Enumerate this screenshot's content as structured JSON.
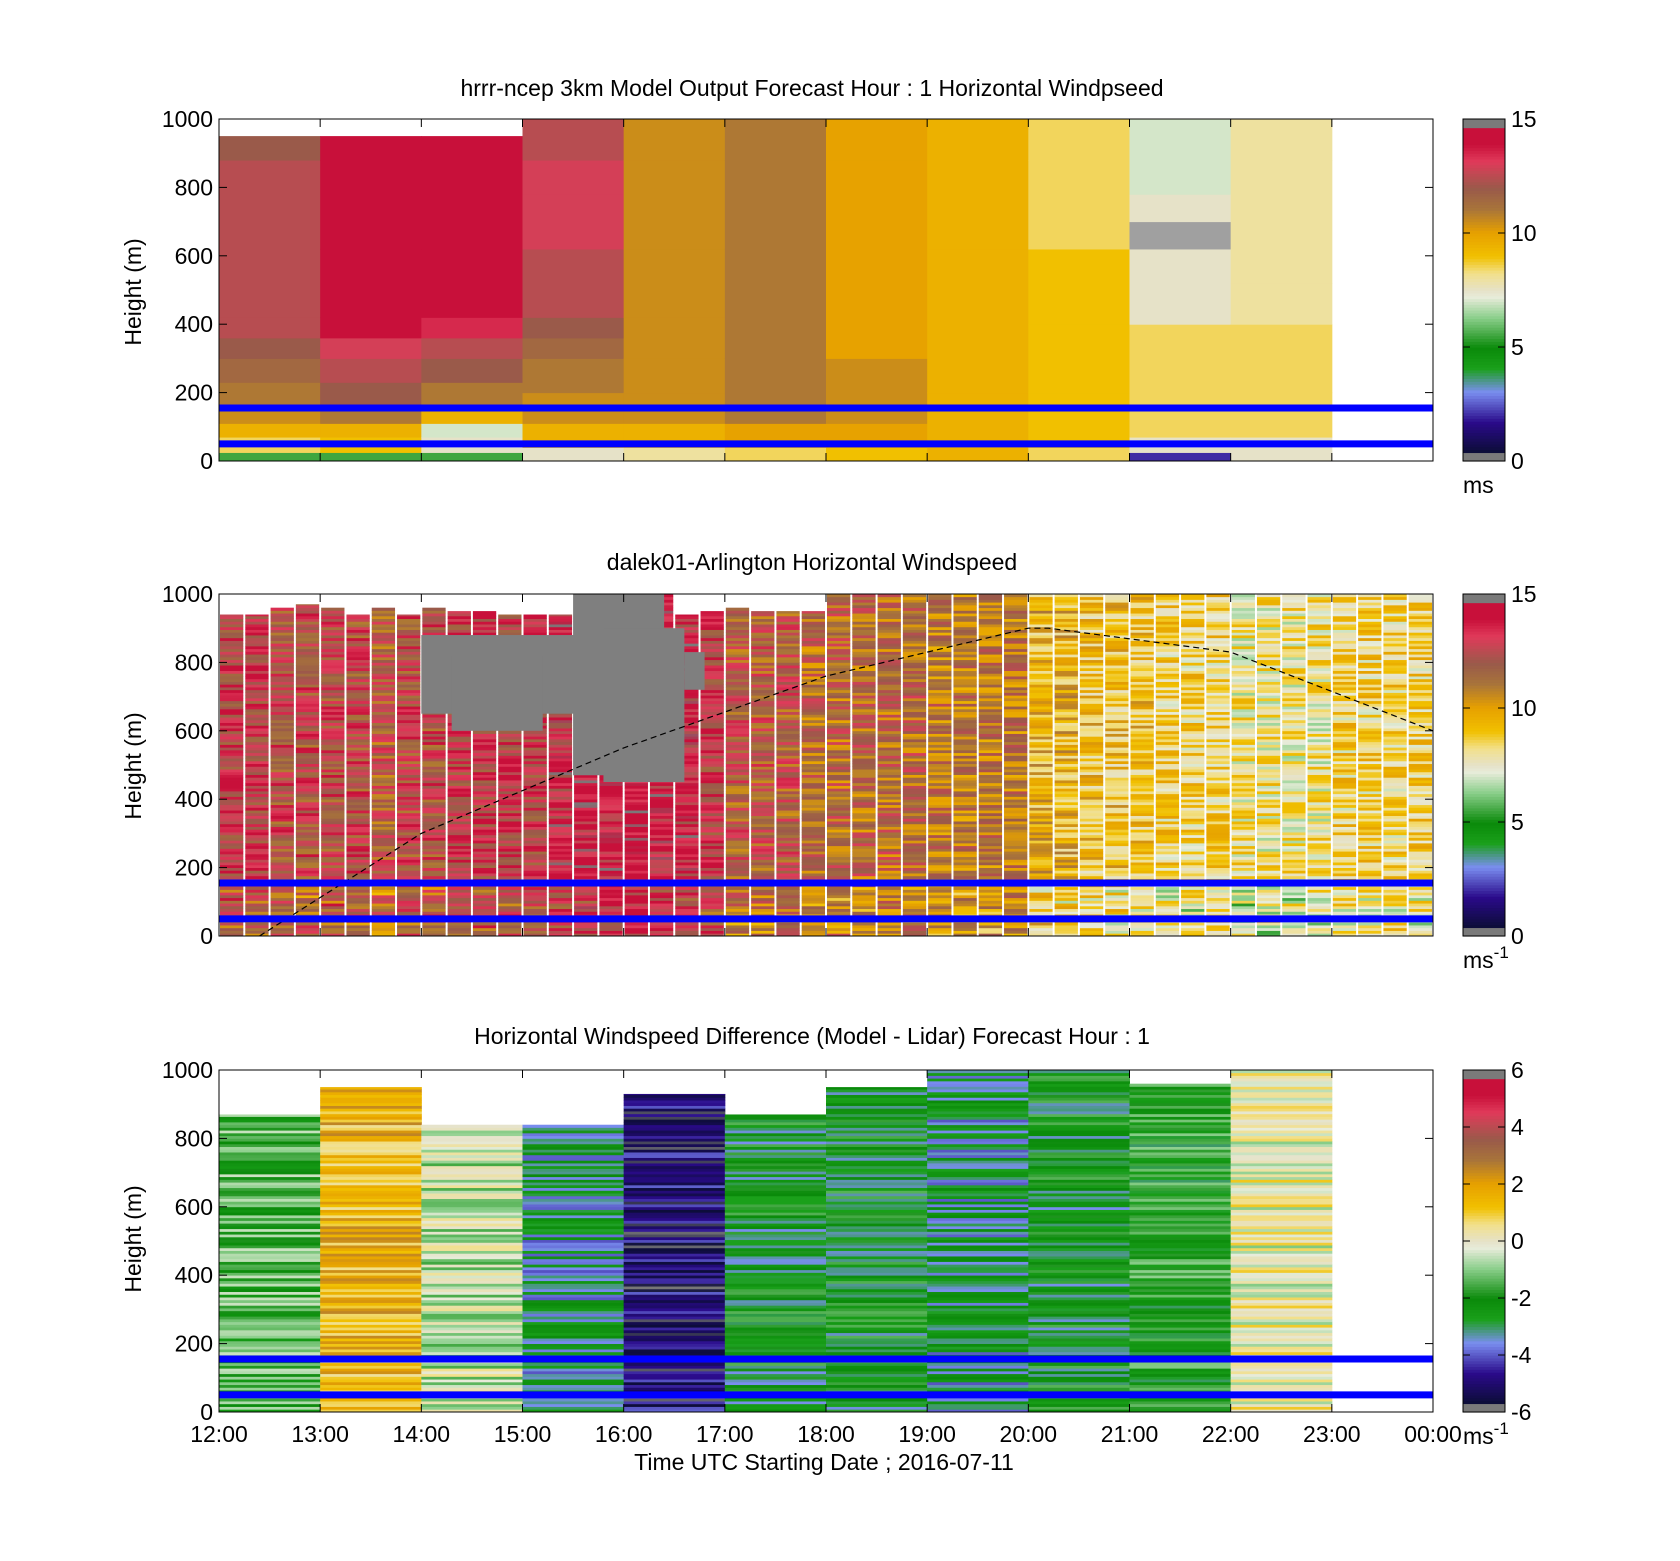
{
  "figure": {
    "x_tick_labels": [
      "12:00",
      "13:00",
      "14:00",
      "15:00",
      "16:00",
      "17:00",
      "18:00",
      "19:00",
      "20:00",
      "21:00",
      "22:00",
      "23:00",
      "00:00"
    ],
    "xlabel": "Time UTC  Starting Date ; 2016-07-11"
  },
  "colors": {
    "blue_line": "#0000ff",
    "speed_scale": [
      [
        0.0,
        "#7a7a7a"
      ],
      [
        0.025,
        "#0d0d3a"
      ],
      [
        0.11,
        "#2a0a8a"
      ],
      [
        0.2,
        "#7a8ef0"
      ],
      [
        0.27,
        "#1aa01a"
      ],
      [
        0.33,
        "#0a8a0a"
      ],
      [
        0.42,
        "#8ccf8c"
      ],
      [
        0.48,
        "#e8ecda"
      ],
      [
        0.5,
        "#e6e2c8"
      ],
      [
        0.55,
        "#f2e08a"
      ],
      [
        0.6,
        "#f1c000"
      ],
      [
        0.67,
        "#e6a000"
      ],
      [
        0.74,
        "#a8743a"
      ],
      [
        0.8,
        "#9a5a4a"
      ],
      [
        0.88,
        "#e03a5a"
      ],
      [
        0.93,
        "#c8103a"
      ],
      [
        0.975,
        "#c8103a"
      ],
      [
        1.0,
        "#7a7a7a"
      ]
    ]
  },
  "chart_data": [
    {
      "type": "heatmap",
      "title": "hrrr-ncep 3km Model Output   Forecast Hour : 1 Horizontal Windpseed",
      "xlabel": "",
      "ylabel": "Height (m)",
      "ylim": [
        0,
        1000
      ],
      "y_ticks": [
        0,
        200,
        400,
        600,
        800,
        1000
      ],
      "colorbar": {
        "ticks": [
          0,
          5,
          10,
          15
        ],
        "unit": "ms",
        "unit_sup": ""
      },
      "clim": [
        0,
        15
      ],
      "horizontal_lines_m": [
        50,
        155
      ],
      "columns": [
        {
          "start": "12:00",
          "heights": [
            25,
            70,
            110,
            160,
            230,
            300,
            360,
            420,
            880,
            950,
            1000
          ],
          "values": [
            5.5,
            8.5,
            9.5,
            10.5,
            11.0,
            11.5,
            12.0,
            12.5,
            12.5,
            12.0,
            0
          ]
        },
        {
          "start": "13:00",
          "heights": [
            25,
            70,
            110,
            160,
            230,
            300,
            360,
            420,
            620,
            880,
            950,
            1000
          ],
          "values": [
            5.5,
            9.0,
            9.5,
            11.0,
            12.0,
            12.5,
            13.0,
            14.0,
            14.0,
            14.5,
            14.0,
            0
          ]
        },
        {
          "start": "14:00",
          "heights": [
            25,
            70,
            110,
            160,
            230,
            300,
            360,
            420,
            620,
            880,
            950,
            1000
          ],
          "values": [
            5.5,
            7.5,
            7.0,
            9.5,
            11.0,
            12.0,
            12.5,
            13.5,
            14.0,
            14.0,
            14.0,
            0
          ]
        },
        {
          "start": "15:00",
          "heights": [
            40,
            110,
            200,
            300,
            360,
            420,
            620,
            780,
            880,
            1000
          ],
          "values": [
            7.5,
            9.5,
            10.5,
            11.0,
            11.5,
            12.0,
            12.5,
            13.0,
            13.0,
            12.5
          ]
        },
        {
          "start": "16:00",
          "heights": [
            40,
            110,
            200,
            300,
            420,
            620,
            880,
            1000
          ],
          "values": [
            8.0,
            9.5,
            10.5,
            10.5,
            10.5,
            10.5,
            10.5,
            10.5
          ]
        },
        {
          "start": "17:00",
          "heights": [
            40,
            110,
            300,
            620,
            880,
            1000
          ],
          "values": [
            8.5,
            10.0,
            11.0,
            11.0,
            11.0,
            11.0
          ]
        },
        {
          "start": "18:00",
          "heights": [
            40,
            110,
            300,
            620,
            880,
            1000
          ],
          "values": [
            9.0,
            10.0,
            10.5,
            10.0,
            10.0,
            10.0
          ]
        },
        {
          "start": "19:00",
          "heights": [
            40,
            200,
            400,
            620,
            880,
            1000
          ],
          "values": [
            9.5,
            9.5,
            9.5,
            9.5,
            9.5,
            9.5
          ]
        },
        {
          "start": "20:00",
          "heights": [
            40,
            200,
            400,
            620,
            880,
            1000
          ],
          "values": [
            8.5,
            9.0,
            9.0,
            9.0,
            8.5,
            8.5
          ]
        },
        {
          "start": "21:00",
          "heights": [
            25,
            70,
            200,
            400,
            620,
            700,
            780,
            880,
            1000
          ],
          "values": [
            2.0,
            7.5,
            8.5,
            8.5,
            7.5,
            0,
            7.5,
            7.0,
            7.0
          ]
        },
        {
          "start": "22:00",
          "heights": [
            70,
            200,
            400,
            520,
            880,
            1000
          ],
          "values": [
            7.5,
            8.5,
            8.5,
            8.0,
            8.0,
            8.0
          ]
        },
        {
          "start": "23:00",
          "heights": [],
          "values": []
        }
      ]
    },
    {
      "type": "heatmap",
      "title": "dalek01-Arlington  Horizontal Windspeed",
      "xlabel": "",
      "ylabel": "Height (m)",
      "ylim": [
        0,
        1000
      ],
      "y_ticks": [
        0,
        200,
        400,
        600,
        800,
        1000
      ],
      "colorbar": {
        "ticks": [
          0,
          5,
          10,
          15
        ],
        "unit": "ms",
        "unit_sup": "-1"
      },
      "clim": [
        0,
        15
      ],
      "horizontal_lines_m": [
        50,
        155
      ],
      "overlay_curve": {
        "style": "dashed",
        "x_hours": [
          0.4,
          2,
          4,
          6,
          8,
          8.2,
          10,
          12
        ],
        "y_m": [
          0,
          300,
          550,
          760,
          900,
          900,
          830,
          600
        ]
      },
      "time_bins_per_hour": 4,
      "bin_means": [
        13.0,
        13.0,
        12.5,
        12.5,
        12.5,
        12.5,
        12.0,
        12.5,
        12.5,
        13.0,
        13.0,
        13.0,
        13.0,
        13.5,
        14.0,
        14.0,
        14.5,
        14.0,
        13.5,
        13.0,
        12.0,
        12.0,
        12.0,
        11.5,
        11.5,
        11.5,
        11.5,
        11.5,
        11.0,
        11.0,
        11.0,
        11.0,
        9.5,
        9.5,
        9.0,
        9.0,
        9.0,
        8.5,
        8.5,
        8.5,
        8.0,
        8.0,
        8.0,
        8.0,
        8.5,
        8.5,
        8.5,
        8.5
      ],
      "bin_tops_m": [
        940,
        940,
        960,
        970,
        960,
        940,
        960,
        940,
        960,
        950,
        950,
        940,
        940,
        940,
        960,
        1000,
        980,
        1000,
        940,
        950,
        960,
        950,
        950,
        950,
        1000,
        1000,
        1000,
        1000,
        1000,
        1000,
        1000,
        1000,
        1000,
        1000,
        1000,
        1000,
        1000,
        1000,
        1000,
        1000,
        1000,
        1000,
        1000,
        1000,
        1000,
        1000,
        1000,
        1000
      ],
      "missing_blocks": [
        {
          "from_hour": 2.0,
          "to_hour": 3.8,
          "bottom_m": 650,
          "top_m": 880
        },
        {
          "from_hour": 2.3,
          "to_hour": 3.2,
          "bottom_m": 600,
          "top_m": 820
        },
        {
          "from_hour": 3.5,
          "to_hour": 4.4,
          "bottom_m": 470,
          "top_m": 1000
        },
        {
          "from_hour": 3.8,
          "to_hour": 4.6,
          "bottom_m": 450,
          "top_m": 900
        },
        {
          "from_hour": 4.6,
          "to_hour": 4.8,
          "bottom_m": 720,
          "top_m": 830
        }
      ]
    },
    {
      "type": "heatmap",
      "title": "Horizontal Windspeed Difference (Model - Lidar) Forecast Hour : 1",
      "xlabel": "Time UTC  Starting Date ; 2016-07-11",
      "ylabel": "Height (m)",
      "ylim": [
        0,
        1000
      ],
      "y_ticks": [
        0,
        200,
        400,
        600,
        800,
        1000
      ],
      "colorbar": {
        "ticks": [
          -6,
          -4,
          -2,
          0,
          2,
          4,
          6
        ],
        "unit": "ms",
        "unit_sup": "-1"
      },
      "clim": [
        -6,
        6
      ],
      "horizontal_lines_m": [
        50,
        155
      ],
      "columns": [
        {
          "start": "12:00",
          "mean": -1.5,
          "top_m": 870
        },
        {
          "start": "13:00",
          "mean": 1.5,
          "top_m": 950
        },
        {
          "start": "14:00",
          "mean": -0.5,
          "top_m": 840
        },
        {
          "start": "15:00",
          "mean": -3.0,
          "top_m": 840
        },
        {
          "start": "16:00",
          "mean": -5.0,
          "top_m": 930
        },
        {
          "start": "17:00",
          "mean": -2.5,
          "top_m": 870
        },
        {
          "start": "18:00",
          "mean": -2.5,
          "top_m": 950
        },
        {
          "start": "19:00",
          "mean": -3.0,
          "top_m": 1000
        },
        {
          "start": "20:00",
          "mean": -2.5,
          "top_m": 1000
        },
        {
          "start": "21:00",
          "mean": -2.0,
          "top_m": 960
        },
        {
          "start": "22:00",
          "mean": 0.0,
          "top_m": 1000
        },
        {
          "start": "23:00",
          "mean": null,
          "top_m": 0
        }
      ]
    }
  ]
}
